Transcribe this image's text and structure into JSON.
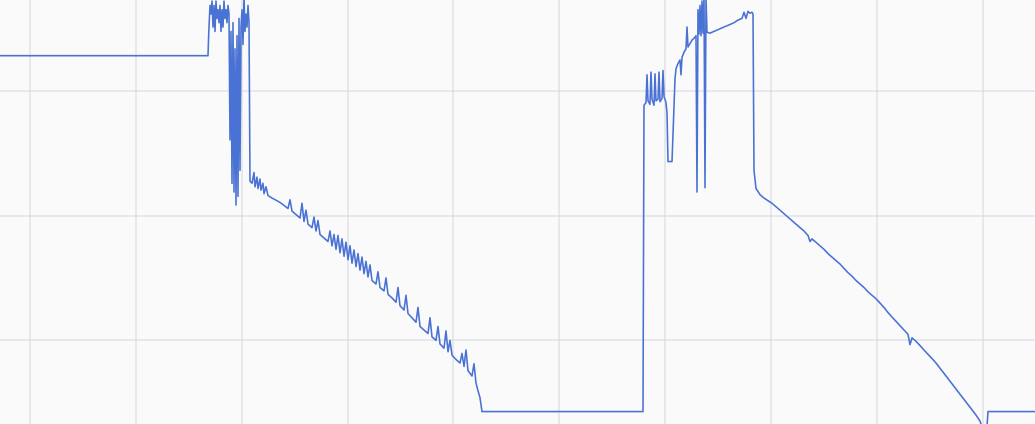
{
  "chart_data": {
    "type": "line",
    "title": "",
    "xlabel": "",
    "ylabel": "",
    "grid": true,
    "legend": "none",
    "series_color": "#4a72d4",
    "grid_color": "#d3d6dc",
    "background_color": "#fafafa",
    "xlim": [
      0,
      1035
    ],
    "ylim": [
      0,
      100
    ],
    "series": [
      {
        "points": [
          [
            0,
            84.4
          ],
          [
            208,
            84.4
          ],
          [
            208.5,
            88
          ],
          [
            209,
            91
          ],
          [
            210,
            96
          ],
          [
            211,
            94
          ],
          [
            212,
            97
          ],
          [
            213,
            91
          ],
          [
            214,
            96
          ],
          [
            215,
            90
          ],
          [
            216,
            97
          ],
          [
            217,
            93
          ],
          [
            218,
            95
          ],
          [
            219,
            92
          ],
          [
            220,
            96
          ],
          [
            221,
            90
          ],
          [
            222,
            95
          ],
          [
            223,
            91
          ],
          [
            224,
            97
          ],
          [
            225,
            93
          ],
          [
            226,
            95
          ],
          [
            227,
            92
          ],
          [
            228,
            96
          ],
          [
            229,
            94
          ],
          [
            230,
            65
          ],
          [
            231,
            90
          ],
          [
            232,
            55
          ],
          [
            233,
            92
          ],
          [
            234,
            53
          ],
          [
            235,
            86
          ],
          [
            236,
            50
          ],
          [
            237,
            89
          ],
          [
            238,
            52
          ],
          [
            239,
            93
          ],
          [
            240,
            58
          ],
          [
            241,
            91
          ],
          [
            242,
            95
          ],
          [
            243,
            87
          ],
          [
            244,
            98
          ],
          [
            245,
            90
          ],
          [
            246,
            94
          ],
          [
            247,
            91
          ],
          [
            248,
            96
          ],
          [
            249,
            92
          ],
          [
            250,
            55.5
          ],
          [
            252,
            55.0
          ],
          [
            254,
            57.5
          ],
          [
            255,
            54.2
          ],
          [
            257,
            56.4
          ],
          [
            258,
            53.8
          ],
          [
            260,
            56.0
          ],
          [
            261,
            53.4
          ],
          [
            263,
            55.0
          ],
          [
            264,
            52.6
          ],
          [
            266,
            54.2
          ],
          [
            268,
            52.2
          ],
          [
            272,
            51.6
          ],
          [
            276,
            51.1
          ],
          [
            280,
            50.6
          ],
          [
            284,
            49.9
          ],
          [
            288,
            49.2
          ],
          [
            290,
            51.2
          ],
          [
            292,
            48.6
          ],
          [
            296,
            47.8
          ],
          [
            300,
            47.0
          ],
          [
            302,
            50.4
          ],
          [
            304,
            46.2
          ],
          [
            306,
            48.8
          ],
          [
            308,
            45.6
          ],
          [
            312,
            44.8
          ],
          [
            314,
            47.2
          ],
          [
            316,
            44.0
          ],
          [
            318,
            46.4
          ],
          [
            320,
            43.2
          ],
          [
            324,
            42.4
          ],
          [
            328,
            41.6
          ],
          [
            330,
            44.0
          ],
          [
            332,
            40.6
          ],
          [
            334,
            43.2
          ],
          [
            336,
            39.8
          ],
          [
            338,
            43.0
          ],
          [
            340,
            39.0
          ],
          [
            342,
            42.2
          ],
          [
            344,
            38.2
          ],
          [
            346,
            41.4
          ],
          [
            348,
            37.4
          ],
          [
            350,
            40.6
          ],
          [
            352,
            36.6
          ],
          [
            354,
            39.6
          ],
          [
            356,
            35.8
          ],
          [
            358,
            38.8
          ],
          [
            360,
            35.0
          ],
          [
            362,
            38.0
          ],
          [
            364,
            34.2
          ],
          [
            366,
            37.0
          ],
          [
            368,
            33.4
          ],
          [
            370,
            36.2
          ],
          [
            372,
            32.6
          ],
          [
            376,
            31.8
          ],
          [
            378,
            34.6
          ],
          [
            380,
            31.0
          ],
          [
            384,
            30.2
          ],
          [
            386,
            33.2
          ],
          [
            388,
            29.4
          ],
          [
            392,
            28.6
          ],
          [
            396,
            27.6
          ],
          [
            398,
            31.0
          ],
          [
            400,
            26.8
          ],
          [
            404,
            25.8
          ],
          [
            406,
            29.2
          ],
          [
            408,
            25.0
          ],
          [
            412,
            24.0
          ],
          [
            416,
            23.0
          ],
          [
            418,
            26.4
          ],
          [
            420,
            22.0
          ],
          [
            424,
            21.2
          ],
          [
            428,
            20.4
          ],
          [
            430,
            24.0
          ],
          [
            432,
            19.6
          ],
          [
            436,
            18.8
          ],
          [
            438,
            22.0
          ],
          [
            440,
            18.0
          ],
          [
            444,
            17.0
          ],
          [
            446,
            21.0
          ],
          [
            448,
            16.2
          ],
          [
            450,
            18.8
          ],
          [
            452,
            15.4
          ],
          [
            456,
            14.4
          ],
          [
            460,
            13.6
          ],
          [
            462,
            15.8
          ],
          [
            464,
            12.8
          ],
          [
            466,
            16.6
          ],
          [
            468,
            11.8
          ],
          [
            472,
            10.6
          ],
          [
            474,
            13.4
          ],
          [
            476,
            9.0
          ],
          [
            478,
            7.2
          ],
          [
            480,
            5.6
          ],
          [
            482,
            2.4
          ],
          [
            643,
            2.4
          ],
          [
            644,
            73.0
          ],
          [
            646,
            73.6
          ],
          [
            647,
            80.0
          ],
          [
            648,
            74.0
          ],
          [
            650,
            73.2
          ],
          [
            651,
            80.6
          ],
          [
            652,
            74.4
          ],
          [
            654,
            73.0
          ],
          [
            655,
            80.2
          ],
          [
            656,
            74.0
          ],
          [
            658,
            74.4
          ],
          [
            659,
            80.6
          ],
          [
            660,
            73.8
          ],
          [
            662,
            74.6
          ],
          [
            663,
            81.0
          ],
          [
            664,
            75.0
          ],
          [
            666,
            73.6
          ],
          [
            667,
            71.2
          ],
          [
            668,
            60.0
          ],
          [
            672,
            60.0
          ],
          [
            675,
            79.0
          ],
          [
            676,
            81.4
          ],
          [
            678,
            82.6
          ],
          [
            680,
            83.4
          ],
          [
            681,
            80.0
          ],
          [
            682,
            84.0
          ],
          [
            684,
            85.2
          ],
          [
            686,
            86.0
          ],
          [
            687,
            91.0
          ],
          [
            688,
            86.4
          ],
          [
            690,
            87.2
          ],
          [
            692,
            88.0
          ],
          [
            694,
            88.4
          ],
          [
            696,
            89.0
          ],
          [
            697,
            53.0
          ],
          [
            698,
            95.0
          ],
          [
            699,
            89.4
          ],
          [
            700,
            96.0
          ],
          [
            701,
            89.0
          ],
          [
            702,
            97.0
          ],
          [
            703,
            89.6
          ],
          [
            704,
            98.0
          ],
          [
            705,
            54.0
          ],
          [
            706,
            97.6
          ],
          [
            707,
            89.8
          ],
          [
            710,
            89.6
          ],
          [
            714,
            90.0
          ],
          [
            718,
            90.4
          ],
          [
            722,
            90.8
          ],
          [
            726,
            91.2
          ],
          [
            730,
            91.6
          ],
          [
            734,
            92.0
          ],
          [
            738,
            92.6
          ],
          [
            742,
            93.0
          ],
          [
            744,
            94.4
          ],
          [
            746,
            93.0
          ],
          [
            748,
            94.6
          ],
          [
            750,
            94.2
          ],
          [
            752,
            94.4
          ],
          [
            753,
            94.0
          ],
          [
            754,
            58.0
          ],
          [
            756,
            53.8
          ],
          [
            760,
            52.4
          ],
          [
            764,
            51.6
          ],
          [
            768,
            51.0
          ],
          [
            772,
            50.4
          ],
          [
            776,
            49.6
          ],
          [
            780,
            48.8
          ],
          [
            784,
            48.0
          ],
          [
            788,
            47.2
          ],
          [
            792,
            46.4
          ],
          [
            796,
            45.6
          ],
          [
            800,
            44.8
          ],
          [
            804,
            44.0
          ],
          [
            808,
            43.0
          ],
          [
            810,
            41.6
          ],
          [
            812,
            42.2
          ],
          [
            816,
            41.4
          ],
          [
            820,
            40.6
          ],
          [
            824,
            39.8
          ],
          [
            828,
            38.8
          ],
          [
            832,
            38.0
          ],
          [
            836,
            37.2
          ],
          [
            840,
            36.4
          ],
          [
            844,
            35.4
          ],
          [
            848,
            34.4
          ],
          [
            852,
            33.6
          ],
          [
            856,
            32.6
          ],
          [
            860,
            31.8
          ],
          [
            864,
            31.0
          ],
          [
            868,
            30.0
          ],
          [
            872,
            29.2
          ],
          [
            876,
            28.4
          ],
          [
            880,
            27.4
          ],
          [
            884,
            26.4
          ],
          [
            888,
            25.2
          ],
          [
            892,
            24.2
          ],
          [
            896,
            23.2
          ],
          [
            900,
            22.2
          ],
          [
            904,
            21.2
          ],
          [
            908,
            20.2
          ],
          [
            910,
            17.8
          ],
          [
            912,
            19.4
          ],
          [
            916,
            18.6
          ],
          [
            920,
            17.6
          ],
          [
            924,
            16.6
          ],
          [
            928,
            15.6
          ],
          [
            932,
            14.6
          ],
          [
            936,
            13.6
          ],
          [
            940,
            12.4
          ],
          [
            944,
            11.2
          ],
          [
            948,
            10.0
          ],
          [
            952,
            8.8
          ],
          [
            956,
            7.6
          ],
          [
            960,
            6.4
          ],
          [
            964,
            5.2
          ],
          [
            968,
            4.0
          ],
          [
            972,
            2.8
          ],
          [
            976,
            1.6
          ],
          [
            980,
            0.2
          ],
          [
            984,
            -2.4
          ],
          [
            986,
            -4.4
          ],
          [
            988,
            2.4
          ],
          [
            1035,
            2.4
          ]
        ]
      }
    ]
  }
}
